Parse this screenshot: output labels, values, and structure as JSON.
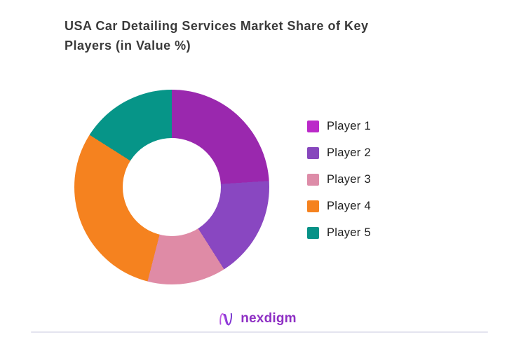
{
  "title": "USA Car Detailing Services Market Share of Key Players (in Value %)",
  "chart_data": {
    "type": "pie",
    "subtype": "donut",
    "title": "USA Car Detailing Services Market Share of Key Players (in Value %)",
    "categories": [
      "Player 1",
      "Player 2",
      "Player 3",
      "Player 4",
      "Player 5"
    ],
    "values": [
      24,
      17,
      13,
      30,
      16
    ],
    "unit": "percent of market value",
    "slice_colors": [
      "#9A28AE",
      "#8947C1",
      "#DF8BA6",
      "#F5821F",
      "#069588"
    ],
    "legend_swatch_colors": [
      "#BB29C9",
      "#8747BD",
      "#DD8CA8",
      "#F5821F",
      "#079287"
    ],
    "start_angle_deg": 0,
    "direction": "clockwise",
    "inner_radius_ratio": 0.5,
    "legend_position": "right",
    "data_labels": false,
    "title_color": "#3a3a3a",
    "legend_text_color": "#1e1e1e"
  },
  "footer": {
    "brand": "nexdigm",
    "brand_color": "#8E2FC4",
    "logo_icon": "nexdigm-wave-n-icon",
    "divider_color": "#E4E4EF"
  }
}
